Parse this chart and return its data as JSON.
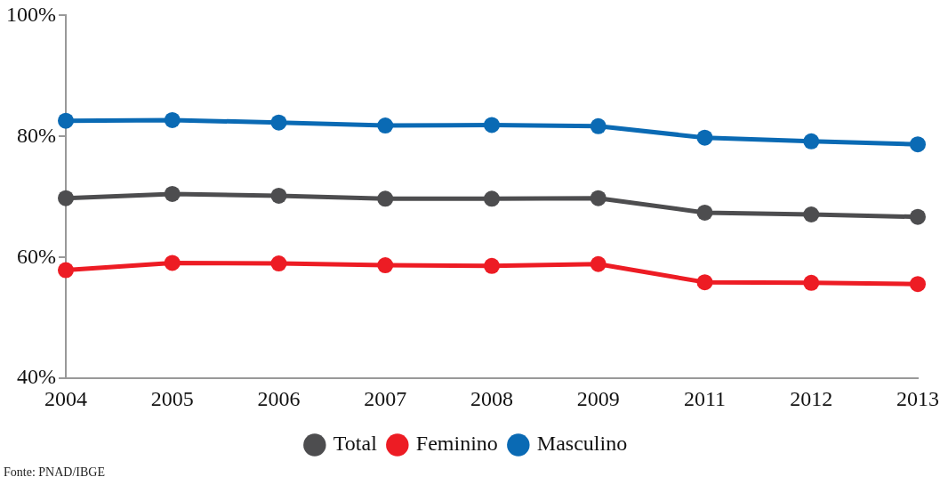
{
  "chart_data": {
    "type": "line",
    "categories": [
      "2004",
      "2005",
      "2006",
      "2007",
      "2008",
      "2009",
      "2011",
      "2012",
      "2013"
    ],
    "series": [
      {
        "name": "Total",
        "color": "#4d4d4f",
        "values": [
          69.8,
          70.5,
          70.2,
          69.7,
          69.7,
          69.8,
          67.4,
          67.1,
          66.7
        ]
      },
      {
        "name": "Feminino",
        "color": "#ed1c24",
        "values": [
          57.9,
          59.1,
          59.0,
          58.7,
          58.6,
          58.9,
          55.9,
          55.8,
          55.6
        ]
      },
      {
        "name": "Masculino",
        "color": "#0a6ab4",
        "values": [
          82.6,
          82.7,
          82.3,
          81.8,
          81.9,
          81.7,
          79.8,
          79.2,
          78.7
        ]
      }
    ],
    "ylim": [
      40,
      100
    ],
    "yticks": [
      {
        "value": 40,
        "label": "40%"
      },
      {
        "value": 60,
        "label": "60%"
      },
      {
        "value": 80,
        "label": "80%"
      },
      {
        "value": 100,
        "label": "100%"
      }
    ],
    "grid": false,
    "legend": "bottom",
    "marker": "circle",
    "line_style": "solid",
    "annotations": [
      "Fonte: PNAD/IBGE"
    ]
  }
}
